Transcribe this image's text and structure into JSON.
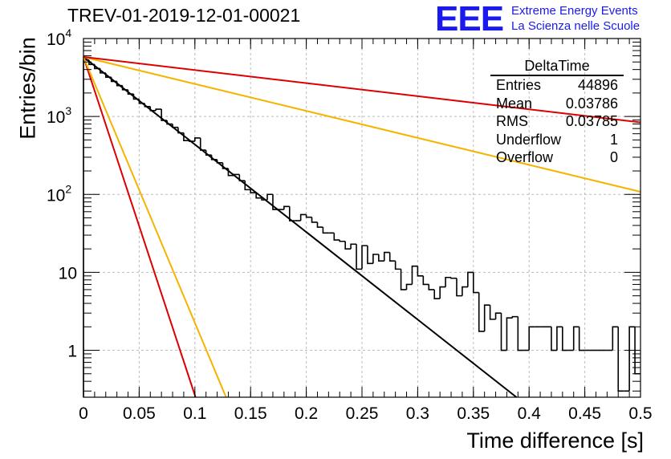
{
  "title": "TREV-01-2019-12-01-00021",
  "logo": {
    "mark": "EEE",
    "line1": "Extreme Energy Events",
    "line2": "La Scienza nelle Scuole",
    "color": "#1a1aee"
  },
  "stats_box": {
    "title": "DeltaTime",
    "rows": [
      {
        "label": "Entries",
        "value": "44896"
      },
      {
        "label": "Mean",
        "value": "0.03786"
      },
      {
        "label": "RMS",
        "value": "0.03785"
      },
      {
        "label": "Underflow",
        "value": "1"
      },
      {
        "label": "Overflow",
        "value": "0"
      }
    ]
  },
  "chart_data": {
    "type": "line",
    "title": "TREV-01-2019-12-01-00021",
    "xlabel": "Time difference [s]",
    "ylabel": "Entries/bin",
    "xlim": [
      0,
      0.5
    ],
    "ylim": [
      0.25,
      10000
    ],
    "yscale": "log",
    "grid": true,
    "x_ticks": [
      "0",
      "0.05",
      "0.1",
      "0.15",
      "0.2",
      "0.25",
      "0.3",
      "0.35",
      "0.4",
      "0.45",
      "0.5"
    ],
    "x_tick_values": [
      0,
      0.05,
      0.1,
      0.15,
      0.2,
      0.25,
      0.3,
      0.35,
      0.4,
      0.45,
      0.5
    ],
    "y_ticks": [
      {
        "value": 1,
        "base": "1",
        "exp": ""
      },
      {
        "value": 10,
        "base": "10",
        "exp": ""
      },
      {
        "value": 100,
        "base": "10",
        "exp": "2"
      },
      {
        "value": 1000,
        "base": "10",
        "exp": "3"
      },
      {
        "value": 10000,
        "base": "10",
        "exp": "4"
      }
    ],
    "histogram": {
      "bin_width": 0.005,
      "x_start": 0,
      "values": [
        5300,
        4650,
        4120,
        3620,
        3190,
        2820,
        2490,
        2200,
        1940,
        1670,
        1470,
        1340,
        1190,
        1240,
        890,
        800,
        725,
        615,
        490,
        480,
        530,
        370,
        320,
        280,
        255,
        215,
        175,
        180,
        150,
        115,
        105,
        90,
        85,
        100,
        64,
        64,
        70,
        46,
        46,
        55,
        51,
        44,
        38,
        32,
        32,
        26,
        25,
        20,
        23,
        11,
        22,
        13,
        17,
        14,
        18,
        14,
        11,
        6,
        7,
        12,
        9,
        7,
        6,
        4.6,
        6.5,
        8.6,
        8.4,
        5,
        6.5,
        10,
        5.5,
        1.75,
        3.8,
        2.5,
        3,
        1,
        2.6,
        2.7,
        1,
        1,
        2,
        2,
        2,
        2,
        1,
        2,
        1,
        1,
        2,
        1,
        1,
        1,
        1,
        1,
        1,
        2,
        0.3,
        0.3,
        2,
        0.5
      ]
    },
    "series": [
      {
        "color": "#000000",
        "x": [
          0,
          0.4
        ],
        "y": [
          5800,
          0.1865
        ]
      },
      {
        "color": "#dd0000",
        "x": [
          0,
          0.1006
        ],
        "y": [
          5800,
          0.25
        ]
      },
      {
        "color": "#f5b400",
        "x": [
          0,
          0.128
        ],
        "y": [
          5800,
          0.25
        ]
      },
      {
        "color": "#f5b400",
        "x": [
          0,
          0.5
        ],
        "y": [
          5800,
          108
        ]
      },
      {
        "color": "#dd0000",
        "x": [
          0,
          0.5
        ],
        "y": [
          5800,
          840
        ]
      }
    ]
  }
}
